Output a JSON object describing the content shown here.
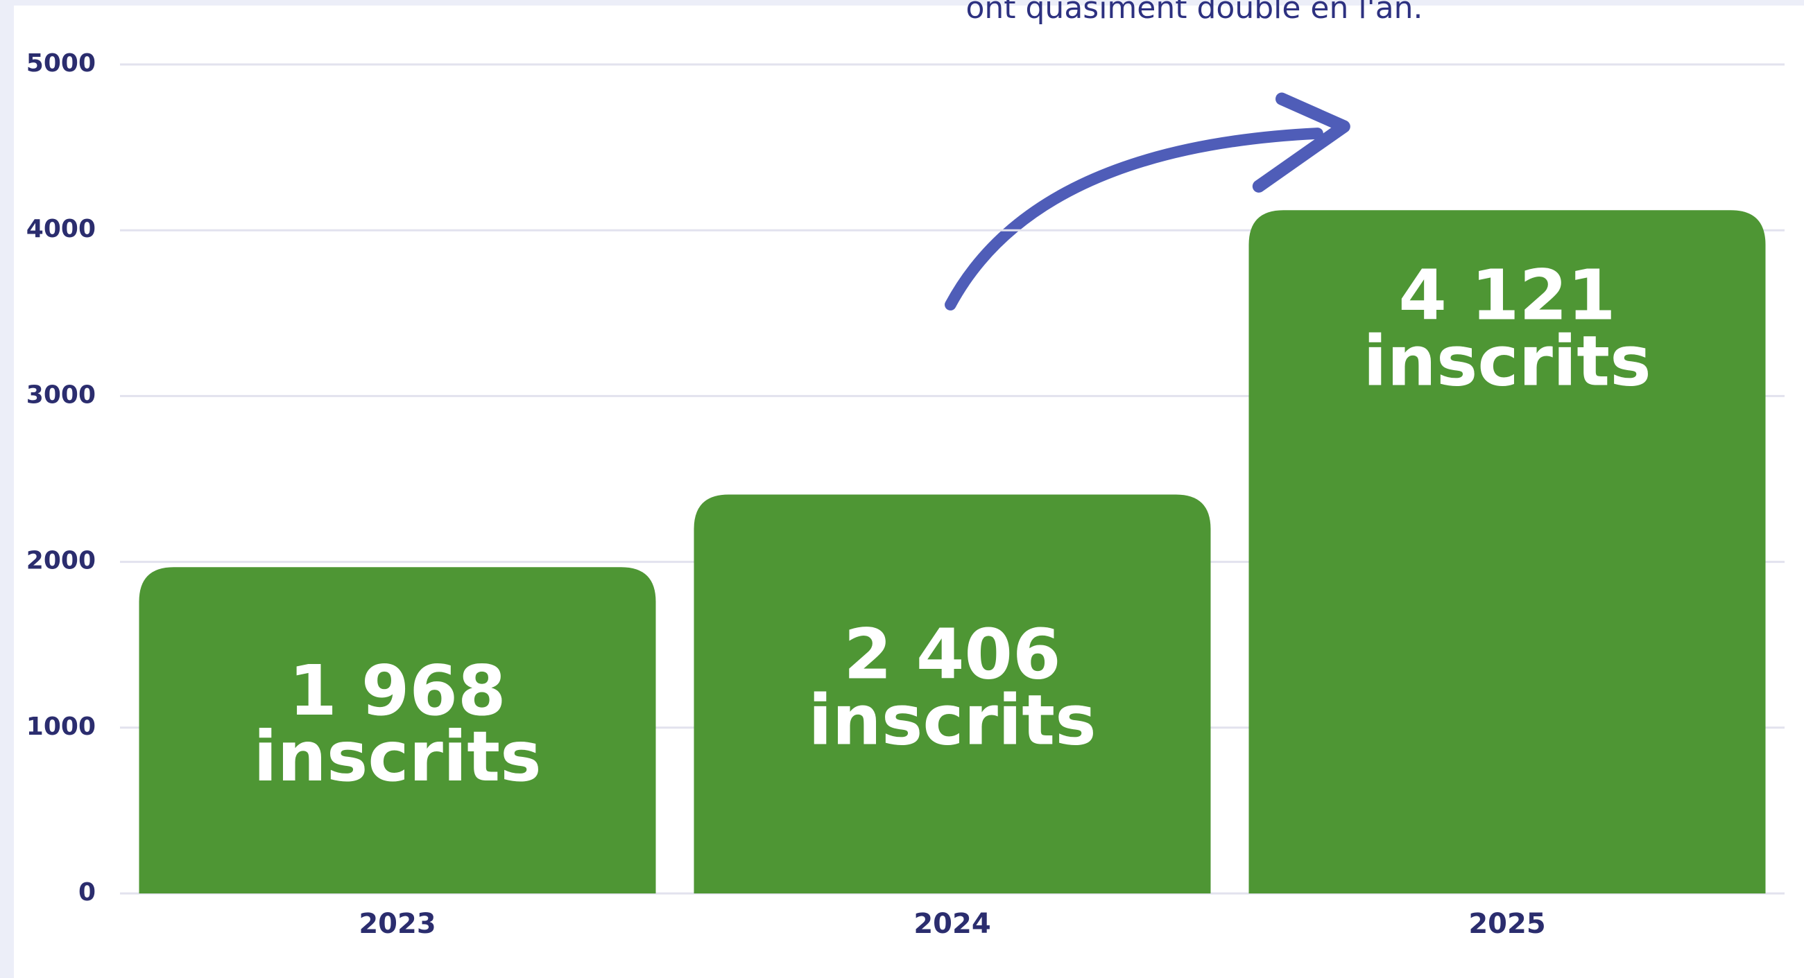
{
  "chart_data": {
    "type": "bar",
    "annotation": "ont quasiment doublé en l'an.",
    "categories": [
      "2023",
      "2024",
      "2025"
    ],
    "values": [
      1968,
      2406,
      4121
    ],
    "value_labels": [
      "1 968",
      "2 406",
      "4 121"
    ],
    "value_label_unit": "inscrits",
    "color": "#4e9634",
    "ylim": [
      0,
      5000
    ],
    "yticks": [
      0,
      1000,
      2000,
      3000,
      4000,
      5000
    ],
    "grid": true
  }
}
